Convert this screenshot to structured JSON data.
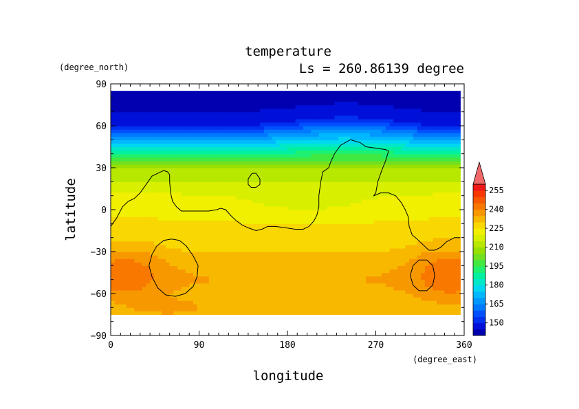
{
  "chart_data": {
    "type": "heatmap",
    "title": "temperature",
    "subtitle": "Ls = 260.86139 degree",
    "xlabel": "longitude",
    "ylabel": "latitude",
    "x_units": "(degree_east)",
    "y_units": "(degree_north)",
    "xlim": [
      0,
      360
    ],
    "ylim": [
      -90,
      90
    ],
    "x_ticks": [
      0,
      90,
      180,
      270,
      360
    ],
    "y_ticks": [
      90,
      60,
      30,
      0,
      -30,
      -60,
      -90
    ],
    "x_tick_labels": [
      "0",
      "90",
      "180",
      "270",
      "360"
    ],
    "y_tick_labels": [
      "90",
      "60",
      "30",
      "0",
      "−30",
      "−60",
      "−90"
    ],
    "data_extent": {
      "lon": [
        0,
        356
      ],
      "lat": [
        -75,
        85
      ]
    },
    "colorbar": {
      "levels": [
        140,
        145,
        150,
        155,
        160,
        165,
        170,
        175,
        180,
        185,
        190,
        195,
        200,
        205,
        210,
        215,
        220,
        225,
        230,
        235,
        240,
        245,
        250,
        255,
        260
      ],
      "colors": [
        "#0000b0",
        "#0010d8",
        "#0030f0",
        "#0050ff",
        "#0078ff",
        "#0098ff",
        "#00b8ff",
        "#00d8f0",
        "#00e8c8",
        "#00f0a0",
        "#20f070",
        "#40e840",
        "#70e020",
        "#98e000",
        "#b8e800",
        "#d8f000",
        "#f0f000",
        "#f8d800",
        "#f8b800",
        "#f89800",
        "#f87800",
        "#f85800",
        "#f83800",
        "#f01818",
        "#f06868"
      ],
      "tick_values": [
        150,
        165,
        180,
        195,
        210,
        225,
        240,
        255
      ],
      "tick_labels": [
        "150",
        "165",
        "180",
        "195",
        "210",
        "225",
        "240",
        "255"
      ],
      "extend": "max"
    },
    "grid": false,
    "contour": "topography outline (black line)",
    "field_description": "Cold north polar region near 140-150 K rising to about 240 K in the southern mid-latitudes"
  }
}
